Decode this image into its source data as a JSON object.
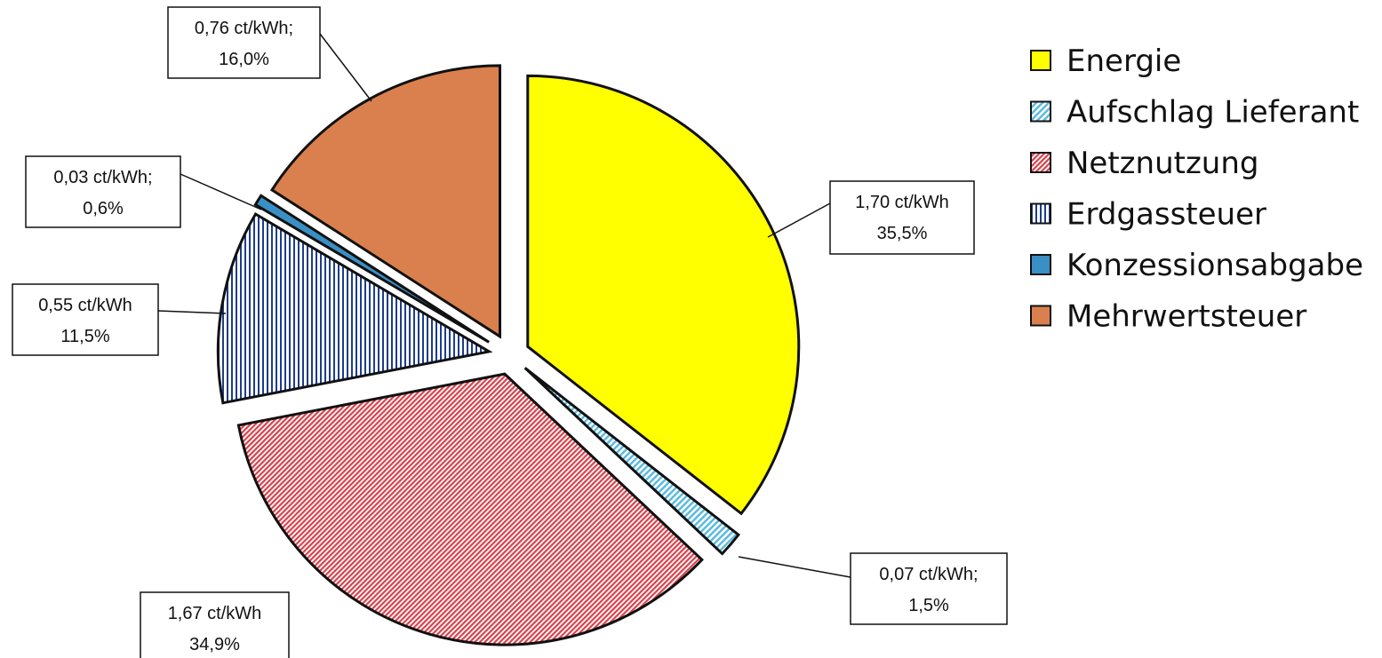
{
  "chart_data": {
    "type": "pie",
    "unit": "ct/kWh",
    "slices": [
      {
        "name": "Energie",
        "value": 1.7,
        "percent": 35.5,
        "value_label": "1,70 ct/kWh",
        "percent_label": "35,5%",
        "color": "#ffff00",
        "pattern": "solid"
      },
      {
        "name": "Aufschlag Lieferant",
        "value": 0.07,
        "percent": 1.5,
        "value_label": "0,07 ct/kWh;",
        "percent_label": "1,5%",
        "color": "#5bbbe0",
        "pattern": "diagonal"
      },
      {
        "name": "Netznutzung",
        "value": 1.67,
        "percent": 34.9,
        "value_label": "1,67 ct/kWh",
        "percent_label": "34,9%",
        "color": "#d9414b",
        "pattern": "diagonal"
      },
      {
        "name": "Erdgassteuer",
        "value": 0.55,
        "percent": 11.5,
        "value_label": "0,55 ct/kWh",
        "percent_label": "11,5%",
        "color": "#1d3c8a",
        "pattern": "vertical"
      },
      {
        "name": "Konzessionsabgabe",
        "value": 0.03,
        "percent": 0.6,
        "value_label": "0,03 ct/kWh;",
        "percent_label": "0,6%",
        "color": "#3a8fc4",
        "pattern": "solid"
      },
      {
        "name": "Mehrwertsteuer",
        "value": 0.76,
        "percent": 16.0,
        "value_label": "0,76 ct/kWh;",
        "percent_label": "16,0%",
        "color": "#d9804e",
        "pattern": "solid"
      }
    ],
    "legend_position": "right"
  }
}
